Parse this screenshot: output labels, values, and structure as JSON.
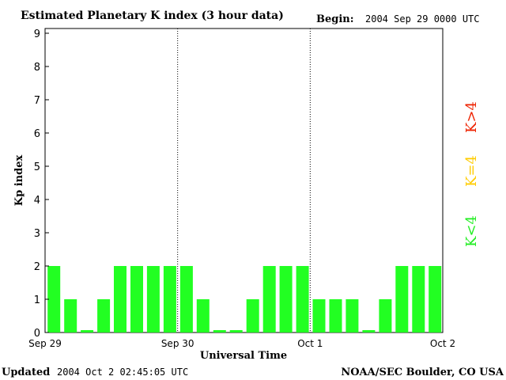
{
  "chart_data": {
    "type": "bar",
    "title": "Estimated Planetary K index (3 hour data)",
    "begin_label": "Begin:",
    "begin_value": "2004 Sep 29 0000 UTC",
    "xlabel": "Universal Time",
    "ylabel": "Kp index",
    "ylim": [
      0,
      9
    ],
    "y_ticks": [
      "0",
      "1",
      "2",
      "3",
      "4",
      "5",
      "6",
      "7",
      "8",
      "9"
    ],
    "x_ticks": [
      "Sep 29",
      "Sep 30",
      "Oct 1",
      "Oct 2"
    ],
    "values": [
      2,
      1,
      0,
      1,
      2,
      2,
      2,
      2,
      2,
      1,
      0,
      0,
      1,
      2,
      2,
      2,
      1,
      1,
      1,
      0,
      1,
      2,
      2,
      2
    ],
    "bar_color": "#22ff22",
    "grid": false,
    "day_separators": true,
    "legend": [
      {
        "label": "K<4",
        "color": "#22ee22"
      },
      {
        "label": "K=4",
        "color": "#ffcc00"
      },
      {
        "label": "K>4",
        "color": "#ee2200"
      }
    ]
  },
  "footer": {
    "updated_label": "Updated",
    "updated_value": "2004 Oct  2 02:45:05 UTC",
    "source": "NOAA/SEC Boulder, CO USA"
  }
}
